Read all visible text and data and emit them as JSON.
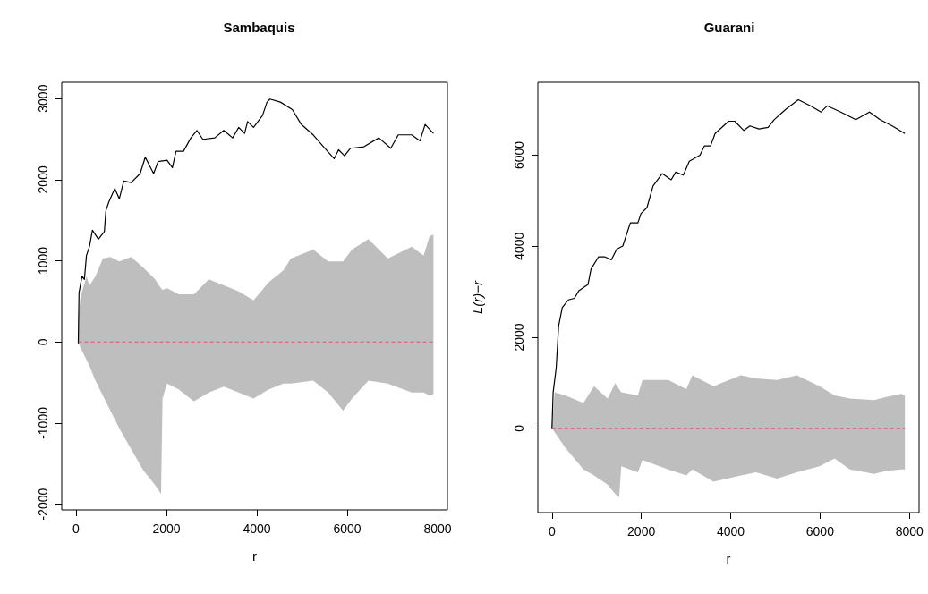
{
  "chart_data": [
    {
      "type": "line",
      "title": "Sambaquis",
      "xlabel": "r",
      "xlim": [
        -316,
        8216
      ],
      "ylim": [
        -2070,
        3200
      ],
      "xticks": [
        0,
        2000,
        4000,
        6000,
        8000
      ],
      "yticks": [
        -2000,
        -1000,
        0,
        1000,
        2000,
        3000
      ],
      "grid": false,
      "series": [
        {
          "color": "#000000",
          "line_style": "solid",
          "x": [
            50,
            66,
            132,
            185,
            231,
            297,
            363,
            495,
            627,
            660,
            726,
            858,
            957,
            1056,
            1221,
            1419,
            1531,
            1716,
            1815,
            2013,
            2132,
            2211,
            2376,
            2541,
            2673,
            2805,
            3069,
            3267,
            3465,
            3597,
            3729,
            3795,
            3927,
            4125,
            4224,
            4290,
            4521,
            4785,
            4983,
            5247,
            5445,
            5709,
            5808,
            5940,
            6072,
            6369,
            6699,
            6963,
            7128,
            7425,
            7610,
            7722,
            7907
          ],
          "values": [
            -18,
            606,
            808,
            771,
            1065,
            1175,
            1377,
            1267,
            1359,
            1616,
            1726,
            1891,
            1763,
            1983,
            1964,
            2075,
            2277,
            2075,
            2222,
            2240,
            2148,
            2350,
            2350,
            2515,
            2607,
            2497,
            2515,
            2607,
            2515,
            2644,
            2570,
            2717,
            2644,
            2791,
            2956,
            2993,
            2956,
            2864,
            2681,
            2552,
            2424,
            2258,
            2368,
            2295,
            2387,
            2405,
            2515,
            2387,
            2552,
            2552,
            2479,
            2681,
            2570
          ]
        },
        {
          "color": "#df536b",
          "line_style": "dashed",
          "x": [
            50,
            99,
            231,
            297,
            429,
            594,
            759,
            957,
            1221,
            1485,
            1749,
            1881,
            1914,
            2013,
            2277,
            2607,
            2937,
            3267,
            3597,
            3927,
            4257,
            4587,
            4752,
            5247,
            5577,
            5907,
            6105,
            6468,
            6897,
            7425,
            7689,
            7821,
            7907
          ],
          "values": [
            0,
            0,
            0,
            0,
            0,
            0,
            0,
            0,
            0,
            0,
            0,
            0,
            0,
            0,
            0,
            0,
            0,
            0,
            0,
            0,
            0,
            0,
            0,
            0,
            0,
            0,
            0,
            0,
            0,
            0,
            0,
            0,
            0
          ],
          "upper": [
            294,
            551,
            808,
            698,
            808,
            1028,
            1047,
            991,
            1047,
            918,
            771,
            661,
            643,
            661,
            588,
            588,
            771,
            698,
            624,
            514,
            734,
            881,
            1028,
            1138,
            991,
            991,
            1138,
            1267,
            1028,
            1175,
            1065,
            1304,
            1322
          ],
          "lower": [
            0,
            -73,
            -220,
            -294,
            -477,
            -661,
            -845,
            -1065,
            -1322,
            -1579,
            -1763,
            -1873,
            -698,
            -514,
            -588,
            -734,
            -624,
            -551,
            -624,
            -698,
            -588,
            -514,
            -514,
            -477,
            -624,
            -845,
            -698,
            -477,
            -514,
            -624,
            -624,
            -661,
            -643
          ]
        }
      ]
    },
    {
      "type": "line",
      "title": "Guarani",
      "xlabel": "r",
      "ylabel": "L(r)−r",
      "xlim": [
        -316,
        8216
      ],
      "ylim": [
        -1850,
        7600
      ],
      "xticks": [
        0,
        2000,
        4000,
        6000,
        8000
      ],
      "yticks": [
        0,
        2000,
        4000,
        6000
      ],
      "grid": false,
      "series": [
        {
          "color": "#000000",
          "line_style": "solid",
          "x": [
            0,
            27,
            95,
            149,
            230,
            366,
            501,
            603,
            806,
            874,
            1043,
            1179,
            1328,
            1450,
            1585,
            1755,
            1924,
            1992,
            2127,
            2263,
            2466,
            2669,
            2771,
            2940,
            3075,
            3313,
            3414,
            3550,
            3651,
            3956,
            4091,
            4295,
            4430,
            4633,
            4837,
            4972,
            5243,
            5514,
            5785,
            6022,
            6158,
            6463,
            6801,
            7106,
            7343,
            7614,
            7899
          ],
          "values": [
            0,
            791,
            1333,
            2246,
            2652,
            2821,
            2855,
            3024,
            3159,
            3497,
            3768,
            3768,
            3700,
            3937,
            4005,
            4512,
            4512,
            4715,
            4850,
            5324,
            5595,
            5459,
            5628,
            5561,
            5865,
            6000,
            6203,
            6203,
            6474,
            6745,
            6745,
            6542,
            6643,
            6576,
            6609,
            6778,
            7015,
            7218,
            7083,
            6948,
            7083,
            6948,
            6778,
            6948,
            6778,
            6643,
            6474
          ]
        },
        {
          "color": "#df536b",
          "line_style": "dashed",
          "x": [
            0,
            61,
            298,
            704,
            942,
            1246,
            1416,
            1504,
            1551,
            1924,
            2025,
            2601,
            3008,
            3143,
            3617,
            4227,
            4566,
            5040,
            5480,
            5988,
            6327,
            6666,
            7208,
            7479,
            7817,
            7899
          ],
          "values": [
            0,
            0,
            0,
            0,
            0,
            0,
            0,
            0,
            0,
            0,
            0,
            0,
            0,
            0,
            0,
            0,
            0,
            0,
            0,
            0,
            0,
            0,
            0,
            0,
            0,
            0
          ],
          "upper": [
            0,
            791,
            724,
            555,
            927,
            656,
            994,
            859,
            791,
            724,
            1062,
            1062,
            859,
            1164,
            927,
            1164,
            1096,
            1062,
            1164,
            927,
            724,
            656,
            622,
            690,
            758,
            724
          ],
          "lower": [
            0,
            -88,
            -426,
            -900,
            -1035,
            -1238,
            -1441,
            -1509,
            -832,
            -967,
            -697,
            -900,
            -1035,
            -900,
            -1170,
            -1035,
            -967,
            -1103,
            -967,
            -832,
            -663,
            -900,
            -1001,
            -934,
            -900,
            -900
          ]
        }
      ]
    }
  ]
}
